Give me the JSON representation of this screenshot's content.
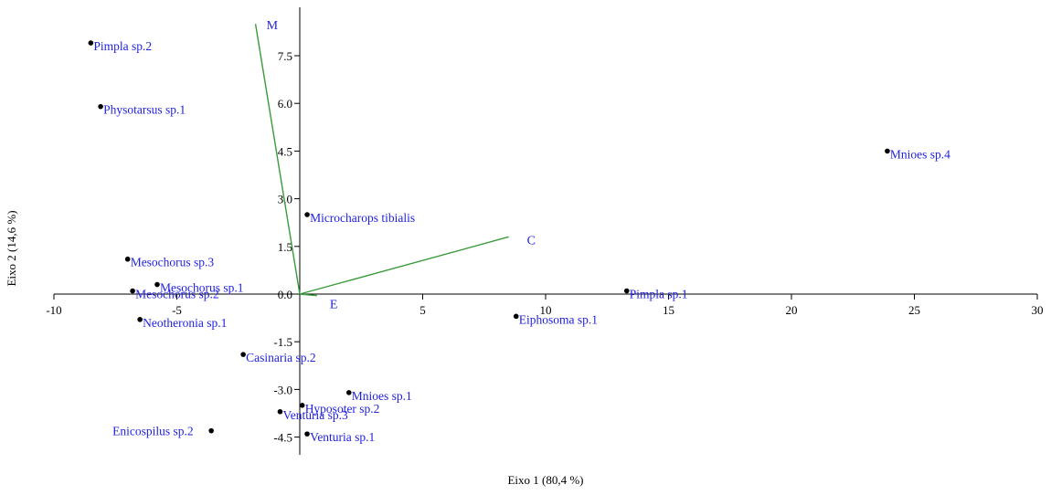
{
  "chart_data": {
    "type": "scatter",
    "xlabel": "Eixo 1 (80,4 %)",
    "ylabel": "Eixo 2 (14,6 %)",
    "xlim": [
      -10,
      30
    ],
    "ylim": [
      -5.0,
      9.0
    ],
    "x_ticks": [
      -10,
      -5,
      5,
      10,
      15,
      20,
      25,
      30
    ],
    "x_tick_labels": [
      "-10",
      "-5",
      "5",
      "10",
      "15",
      "20",
      "25",
      "30"
    ],
    "y_ticks": [
      -4.5,
      -3.0,
      -1.5,
      0.0,
      1.5,
      3.0,
      4.5,
      6.0,
      7.5
    ],
    "y_tick_labels": [
      "-4.5",
      "-3.0",
      "-1.5",
      "0.0",
      "1.5",
      "3.0",
      "4.5",
      "6.0",
      "7.5"
    ],
    "grid": false,
    "label_color": "#1f1fe0",
    "vector_color": "#3a9a3a",
    "points": [
      {
        "label": "Pimpla sp.2",
        "x": -8.5,
        "y": 7.9
      },
      {
        "label": "Physotarsus sp.1",
        "x": -8.1,
        "y": 5.9
      },
      {
        "label": "Mnioes sp.4",
        "x": 23.9,
        "y": 4.5
      },
      {
        "label": "Microcharops tibialis",
        "x": 0.3,
        "y": 2.5
      },
      {
        "label": "Mesochorus sp.3",
        "x": -7.0,
        "y": 1.1
      },
      {
        "label": "Mesochorus sp.1",
        "x": -5.8,
        "y": 0.3
      },
      {
        "label": "Mesochorus sp.2",
        "x": -6.8,
        "y": 0.1
      },
      {
        "label": "Neotheronia sp.1",
        "x": -6.5,
        "y": -0.8
      },
      {
        "label": "Pimpla sp.1",
        "x": 13.3,
        "y": 0.1
      },
      {
        "label": "Eiphosoma sp.1",
        "x": 8.8,
        "y": -0.7
      },
      {
        "label": "Casinaria sp.2",
        "x": -2.3,
        "y": -1.9
      },
      {
        "label": "Mnioes sp.1",
        "x": 2.0,
        "y": -3.1
      },
      {
        "label": "Hyposoter sp.2",
        "x": 0.1,
        "y": -3.5
      },
      {
        "label": "Venturia sp.3",
        "x": -0.8,
        "y": -3.7
      },
      {
        "label": "Enicospilus sp.2",
        "x": -3.6,
        "y": -4.3
      },
      {
        "label": "Venturia sp.1",
        "x": 0.3,
        "y": -4.4
      }
    ],
    "vectors": [
      {
        "label": "M",
        "x": -1.8,
        "y": 8.5
      },
      {
        "label": "C",
        "x": 8.5,
        "y": 1.8
      },
      {
        "label": "E",
        "x": 0.7,
        "y": -0.05
      }
    ]
  }
}
